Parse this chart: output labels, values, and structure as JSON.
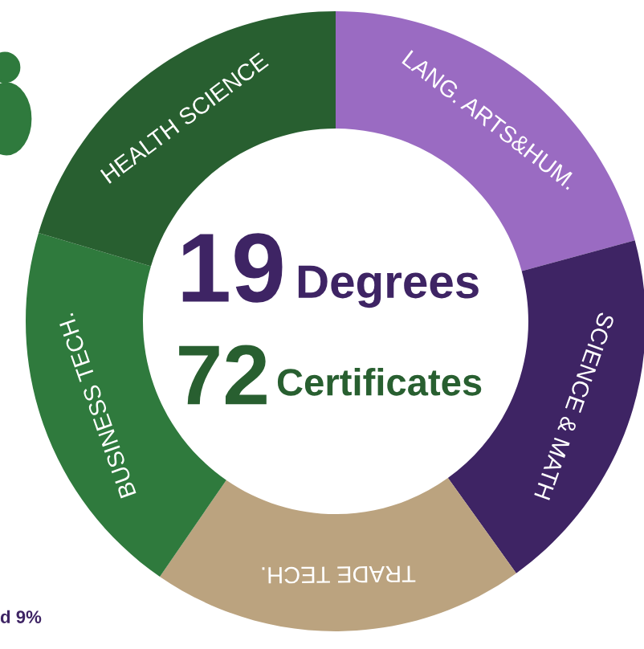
{
  "chart_data": {
    "type": "donut",
    "categories": [
      "LANG. ARTS&HUM.",
      "SCIENCE & MATH",
      "TRADE TECH.",
      "BUSINESS TECH.",
      "HEALTH SCIENCE"
    ],
    "values": [
      20.8,
      19.3,
      19.5,
      20.0,
      20.4
    ],
    "colors": [
      "#9a6bc2",
      "#3e2464",
      "#bba37f",
      "#2f7a3d",
      "#285f30"
    ],
    "annotations": [
      "19",
      "Degrees",
      "72",
      "Certificates",
      "d 9%"
    ]
  }
}
